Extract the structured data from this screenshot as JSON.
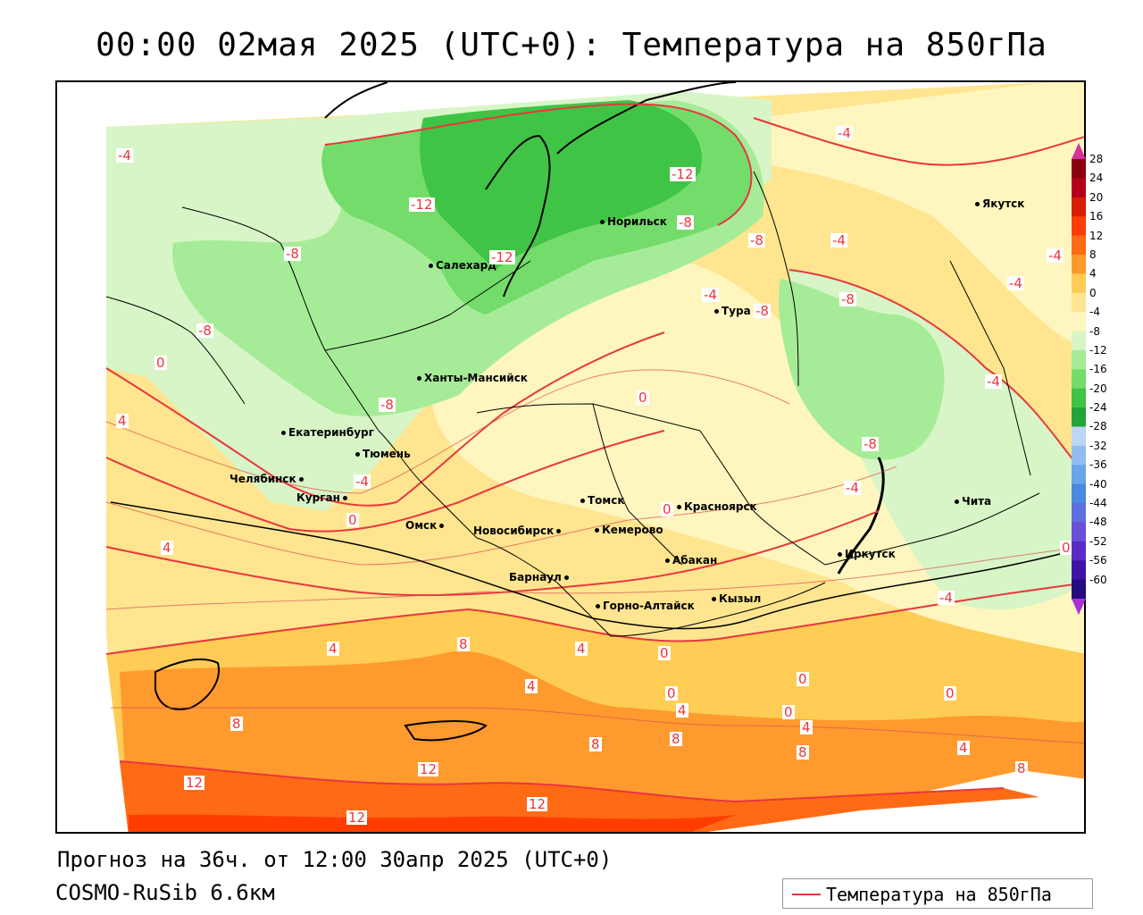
{
  "title": "00:00 02мая 2025 (UTC+0): Температура на 850гПа",
  "forecast_line": "Прогноз на 36ч. от 12:00 30апр 2025 (UTC+0)",
  "model_name": "COSMO-RuSib 6.6км",
  "legend": {
    "label": "Температура на 850гПа",
    "line_color": "#e8373e"
  },
  "colorbar": {
    "labels": [
      "28",
      "24",
      "20",
      "16",
      "12",
      "8",
      "4",
      "0",
      "-4",
      "-8",
      "-12",
      "-16",
      "-20",
      "-24",
      "-28",
      "-32",
      "-36",
      "-40",
      "-44",
      "-48",
      "-52",
      "-56",
      "-60"
    ],
    "colors": [
      "#8b0010",
      "#b3001a",
      "#d81e05",
      "#ff3d00",
      "#ff6a14",
      "#ff9a2e",
      "#ffcc55",
      "#ffe58f",
      "#fff6bf",
      "#d8f5c7",
      "#a6ec98",
      "#73dc6a",
      "#3fc445",
      "#22a33c",
      "#bcd6f5",
      "#92bdf0",
      "#6aa4ea",
      "#4b88e0",
      "#5f6ee0",
      "#6b4fd9",
      "#5a2cc5",
      "#3f13a8",
      "#250a80"
    ],
    "top_arrow": "#d6309a",
    "bottom_arrow": "#a72fd6"
  },
  "cities": [
    {
      "name": "Якутск"
    },
    {
      "name": "Норильск"
    },
    {
      "name": "Салехард"
    },
    {
      "name": "Тура"
    },
    {
      "name": "Ханты-Мансийск"
    },
    {
      "name": "Екатеринбург"
    },
    {
      "name": "Тюмень"
    },
    {
      "name": "Челябинск"
    },
    {
      "name": "Курган"
    },
    {
      "name": "Томск"
    },
    {
      "name": "Красноярск"
    },
    {
      "name": "Омск"
    },
    {
      "name": "Новосибирск"
    },
    {
      "name": "Кемерово"
    },
    {
      "name": "Абакан"
    },
    {
      "name": "Иркутск"
    },
    {
      "name": "Барнаул"
    },
    {
      "name": "Кызыл"
    },
    {
      "name": "Горно-Алтайск"
    },
    {
      "name": "Чита"
    }
  ],
  "contour_labels": [
    "-4",
    "-12",
    "-8",
    "-12",
    "-12",
    "-8",
    "-4",
    "-8",
    "-4",
    "-4",
    "-8",
    "-8",
    "-4",
    "-8",
    "-8",
    "0",
    "0",
    "-4",
    "-4",
    "4",
    "0",
    "-4",
    "-8",
    "-4",
    "0",
    "0",
    "4",
    "4",
    "8",
    "4",
    "8",
    "8",
    "12",
    "12",
    "12",
    "12",
    "4",
    "0",
    "0",
    "0",
    "4",
    "8",
    "8",
    "4",
    "0",
    "4",
    "-4",
    "0",
    "8"
  ]
}
